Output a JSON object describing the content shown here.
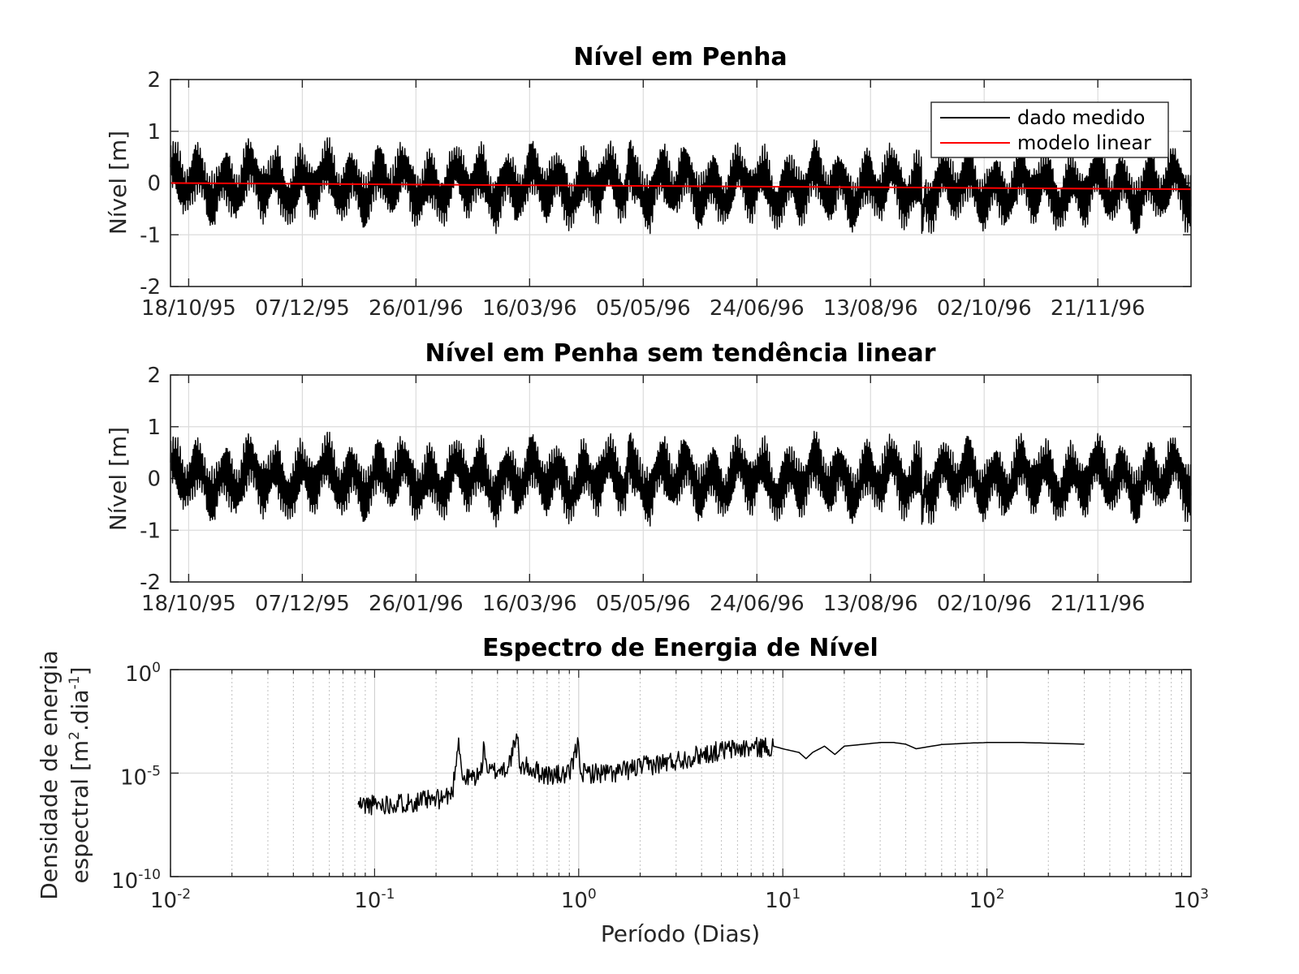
{
  "chart_data": [
    {
      "type": "line",
      "title": "Nível em Penha",
      "ylabel": "Nível [m]",
      "xlabel": "",
      "ylim": [
        -2,
        2
      ],
      "y_ticks": [
        "-2",
        "-1",
        "0",
        "1",
        "2"
      ],
      "x_ticks": [
        "18/10/95",
        "07/12/95",
        "26/01/96",
        "16/03/96",
        "05/05/96",
        "24/06/96",
        "13/08/96",
        "02/10/96",
        "21/11/96"
      ],
      "x_range_dates": [
        "1995-10-10",
        "1997-01-01"
      ],
      "grid": true,
      "legend_position": "top-right",
      "legend": [
        "dado medido",
        "modelo linear"
      ],
      "series": [
        {
          "name": "dado medido",
          "color": "#000000",
          "description_values": {
            "approx_range": [
              -1.1,
              1.15
            ],
            "peak_date": "1996-04-29",
            "peak_value": 1.15,
            "min_date": "1996-09-05",
            "min_value": -1.1
          }
        },
        {
          "name": "modelo linear",
          "color": "#ff0000",
          "x": [
            "1995-10-10",
            "1997-01-01"
          ],
          "y": [
            0.0,
            -0.12
          ]
        }
      ]
    },
    {
      "type": "line",
      "title": "Nível em Penha sem tendência linear",
      "ylabel": "Nível [m]",
      "xlabel": "",
      "ylim": [
        -2,
        2
      ],
      "y_ticks": [
        "-2",
        "-1",
        "0",
        "1",
        "2"
      ],
      "x_ticks": [
        "18/10/95",
        "07/12/95",
        "26/01/96",
        "16/03/96",
        "05/05/96",
        "24/06/96",
        "13/08/96",
        "02/10/96",
        "21/11/96"
      ],
      "grid": true,
      "series": [
        {
          "color": "#000000",
          "description_values": {
            "approx_range": [
              -1.05,
              1.2
            ],
            "peak_date": "1996-04-29",
            "peak_value": 1.2
          }
        }
      ]
    },
    {
      "type": "line",
      "title": "Espectro de Energia de Nível",
      "xlabel": "Período (Dias)",
      "ylabel_lines": [
        "Densidade de energia",
        "espectral [m",
        "2",
        ".dia",
        "-1",
        "]"
      ],
      "x_scale": "log",
      "y_scale": "log",
      "xlim": [
        0.01,
        1000
      ],
      "ylim": [
        1e-10,
        1
      ],
      "x_tick_bases": [
        "10",
        "10",
        "10",
        "10",
        "10",
        "10"
      ],
      "x_tick_exps": [
        "-2",
        "-1",
        "0",
        "1",
        "2",
        "3"
      ],
      "y_tick_bases": [
        "10",
        "10",
        "10"
      ],
      "y_tick_exps": [
        "-10",
        "-5",
        "0"
      ],
      "grid": true,
      "series": [
        {
          "color": "#000000",
          "x": [
            0.083,
            0.1,
            0.15,
            0.2,
            0.24,
            0.258,
            0.27,
            0.33,
            0.345,
            0.36,
            0.45,
            0.5,
            0.517,
            0.55,
            0.7,
            0.9,
            0.997,
            1.03,
            1.1,
            1.5,
            2,
            3,
            4,
            5,
            6,
            8,
            9,
            10,
            12,
            13,
            14,
            16,
            18,
            20,
            25,
            30,
            35,
            40,
            45,
            60,
            80,
            100,
            150,
            200,
            300
          ],
          "y": [
            3e-07,
            3e-07,
            4e-07,
            5e-07,
            1e-06,
            0.0005,
            5e-06,
            8e-06,
            0.0002,
            1e-05,
            2e-05,
            0.0005,
            2e-05,
            2e-05,
            8e-06,
            8e-06,
            0.0003,
            1e-05,
            1e-05,
            1e-05,
            2e-05,
            4e-05,
            8e-05,
            0.00012,
            0.00015,
            0.00018,
            0.0002,
            0.00015,
            0.0001,
            5e-05,
            0.0001,
            0.0002,
            8e-05,
            0.0002,
            0.00025,
            0.0003,
            0.0003,
            0.00025,
            0.00015,
            0.00024,
            0.00028,
            0.0003,
            0.0003,
            0.00028,
            0.00025
          ]
        }
      ]
    }
  ]
}
